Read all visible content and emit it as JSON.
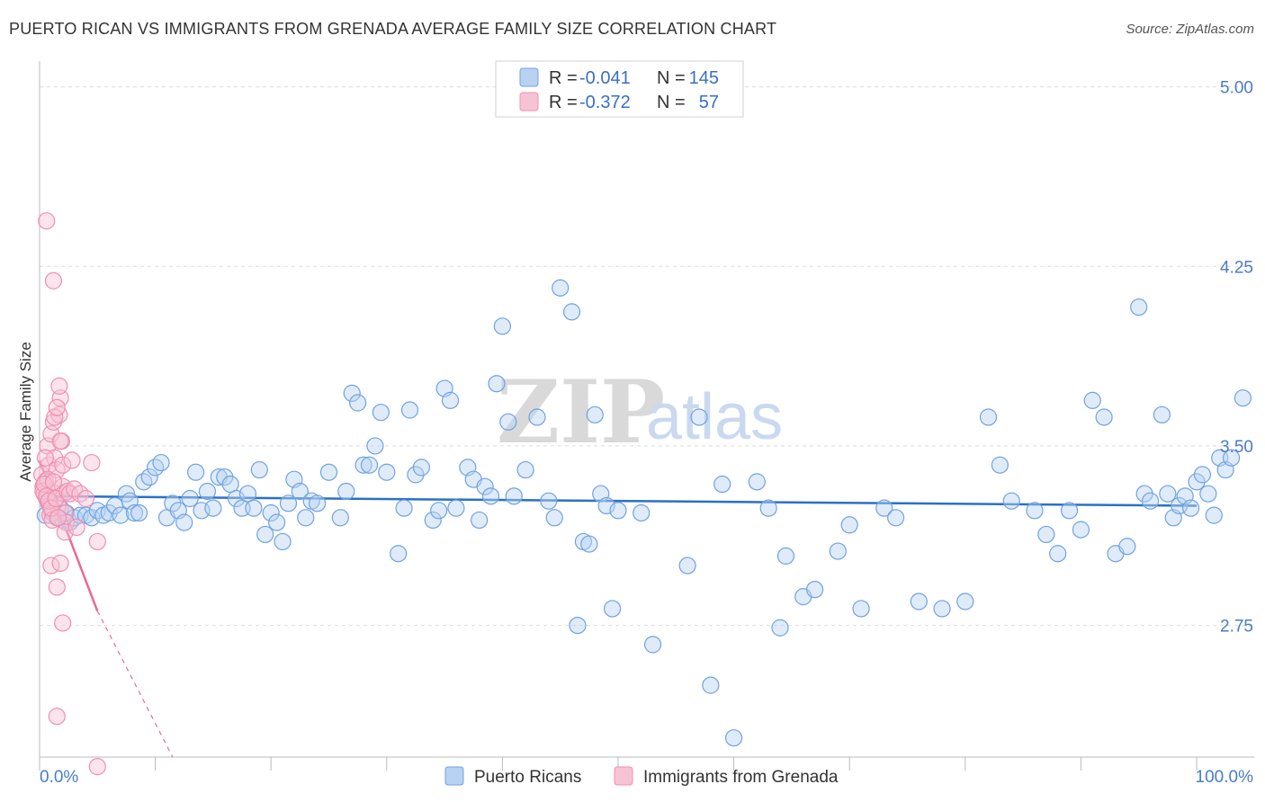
{
  "title": "PUERTO RICAN VS IMMIGRANTS FROM GRENADA AVERAGE FAMILY SIZE CORRELATION CHART",
  "source": "Source: ZipAtlas.com",
  "watermark": {
    "zip": "ZIP",
    "atlas": "atlas"
  },
  "colors": {
    "blue": "#6fa3e0",
    "blue_fill": "#b9d2f2",
    "pink": "#f08fb0",
    "pink_fill": "#f7c3d4",
    "blue_line": "#2a6fcb",
    "pink_line": "#e86a94"
  },
  "legend": {
    "rows": [
      {
        "r_label": "R = ",
        "r_value": "-0.041",
        "n_label": "N = ",
        "n_value": "145"
      },
      {
        "r_label": "R = ",
        "r_value": "-0.372",
        "n_label": "N = ",
        "n_value": "57"
      }
    ]
  },
  "bottom_legend": [
    "Puerto Ricans",
    "Immigrants from Grenada"
  ],
  "chart_data": {
    "type": "scatter",
    "title": "PUERTO RICAN VS IMMIGRANTS FROM GRENADA AVERAGE FAMILY SIZE CORRELATION CHART",
    "xlabel": "",
    "ylabel": "Average Family Size",
    "x_tick_labels": [
      "0.0%",
      "100.0%"
    ],
    "y_tick_labels": [
      "5.00",
      "4.25",
      "3.50",
      "2.75"
    ],
    "y_ticks": [
      5.0,
      4.25,
      3.5,
      2.75
    ],
    "xlim": [
      0,
      100
    ],
    "ylim": [
      2.2,
      5.07
    ],
    "grid": true,
    "series": [
      {
        "name": "Puerto Ricans",
        "trend": {
          "x": [
            0,
            100
          ],
          "y": [
            3.29,
            3.25
          ]
        },
        "points": [
          [
            0.5,
            3.21
          ],
          [
            0.8,
            3.26
          ],
          [
            1.2,
            3.22
          ],
          [
            1.5,
            3.2
          ],
          [
            1.8,
            3.24
          ],
          [
            2.0,
            3.19
          ],
          [
            2.3,
            3.22
          ],
          [
            2.6,
            3.18
          ],
          [
            3.0,
            3.2
          ],
          [
            3.5,
            3.21
          ],
          [
            4.0,
            3.21
          ],
          [
            4.5,
            3.2
          ],
          [
            5.0,
            3.23
          ],
          [
            5.5,
            3.21
          ],
          [
            6.0,
            3.22
          ],
          [
            6.5,
            3.25
          ],
          [
            7.0,
            3.21
          ],
          [
            7.5,
            3.3
          ],
          [
            7.8,
            3.27
          ],
          [
            8.2,
            3.22
          ],
          [
            8.6,
            3.22
          ],
          [
            9.0,
            3.35
          ],
          [
            9.5,
            3.37
          ],
          [
            10.0,
            3.41
          ],
          [
            10.5,
            3.43
          ],
          [
            11.0,
            3.2
          ],
          [
            11.5,
            3.26
          ],
          [
            12.0,
            3.23
          ],
          [
            12.5,
            3.18
          ],
          [
            13.0,
            3.28
          ],
          [
            13.5,
            3.39
          ],
          [
            14.0,
            3.23
          ],
          [
            14.5,
            3.31
          ],
          [
            15.0,
            3.24
          ],
          [
            15.5,
            3.37
          ],
          [
            16.0,
            3.37
          ],
          [
            16.5,
            3.34
          ],
          [
            17.0,
            3.28
          ],
          [
            17.5,
            3.24
          ],
          [
            18.0,
            3.3
          ],
          [
            18.5,
            3.24
          ],
          [
            19.0,
            3.4
          ],
          [
            19.5,
            3.13
          ],
          [
            20.0,
            3.22
          ],
          [
            20.5,
            3.18
          ],
          [
            21.0,
            3.1
          ],
          [
            21.5,
            3.26
          ],
          [
            22.0,
            3.36
          ],
          [
            22.5,
            3.31
          ],
          [
            23.0,
            3.2
          ],
          [
            23.5,
            3.27
          ],
          [
            24.0,
            3.26
          ],
          [
            25.0,
            3.39
          ],
          [
            26.0,
            3.2
          ],
          [
            26.5,
            3.31
          ],
          [
            27.0,
            3.72
          ],
          [
            27.5,
            3.68
          ],
          [
            28.0,
            3.42
          ],
          [
            28.5,
            3.42
          ],
          [
            29.0,
            3.5
          ],
          [
            29.5,
            3.64
          ],
          [
            30.0,
            3.39
          ],
          [
            31.0,
            3.05
          ],
          [
            31.5,
            3.24
          ],
          [
            32.0,
            3.65
          ],
          [
            32.5,
            3.38
          ],
          [
            33.0,
            3.41
          ],
          [
            34.0,
            3.19
          ],
          [
            34.5,
            3.23
          ],
          [
            35.0,
            3.74
          ],
          [
            35.5,
            3.69
          ],
          [
            36.0,
            3.24
          ],
          [
            37.0,
            3.41
          ],
          [
            37.5,
            3.36
          ],
          [
            38.0,
            3.19
          ],
          [
            38.5,
            3.33
          ],
          [
            39.0,
            3.29
          ],
          [
            39.5,
            3.76
          ],
          [
            40.0,
            4.0
          ],
          [
            40.5,
            3.6
          ],
          [
            41.0,
            3.29
          ],
          [
            42.0,
            3.4
          ],
          [
            43.0,
            3.62
          ],
          [
            44.0,
            3.27
          ],
          [
            44.5,
            3.2
          ],
          [
            45.0,
            4.16
          ],
          [
            46.0,
            4.06
          ],
          [
            46.5,
            2.75
          ],
          [
            47.0,
            3.1
          ],
          [
            47.5,
            3.09
          ],
          [
            48.0,
            3.63
          ],
          [
            48.5,
            3.3
          ],
          [
            49.0,
            3.25
          ],
          [
            49.5,
            2.82
          ],
          [
            50.0,
            3.23
          ],
          [
            52.0,
            3.22
          ],
          [
            53.0,
            2.67
          ],
          [
            56.0,
            3.0
          ],
          [
            57.0,
            3.62
          ],
          [
            58.0,
            2.5
          ],
          [
            59.0,
            3.34
          ],
          [
            60.0,
            2.28
          ],
          [
            62.0,
            3.35
          ],
          [
            63.0,
            3.24
          ],
          [
            64.0,
            2.74
          ],
          [
            64.5,
            3.04
          ],
          [
            66.0,
            2.87
          ],
          [
            67.0,
            2.9
          ],
          [
            69.0,
            3.06
          ],
          [
            70.0,
            3.17
          ],
          [
            71.0,
            2.82
          ],
          [
            73.0,
            3.24
          ],
          [
            74.0,
            3.2
          ],
          [
            76.0,
            2.85
          ],
          [
            78.0,
            2.82
          ],
          [
            80.0,
            2.85
          ],
          [
            82.0,
            3.62
          ],
          [
            83.0,
            3.42
          ],
          [
            84.0,
            3.27
          ],
          [
            86.0,
            3.23
          ],
          [
            87.0,
            3.13
          ],
          [
            88.0,
            3.05
          ],
          [
            89.0,
            3.23
          ],
          [
            90.0,
            3.15
          ],
          [
            91.0,
            3.69
          ],
          [
            92.0,
            3.62
          ],
          [
            93.0,
            3.05
          ],
          [
            94.0,
            3.08
          ],
          [
            95.0,
            4.08
          ],
          [
            95.5,
            3.3
          ],
          [
            96.0,
            3.27
          ],
          [
            97.0,
            3.63
          ],
          [
            97.5,
            3.3
          ],
          [
            98.0,
            3.2
          ],
          [
            98.5,
            3.25
          ],
          [
            99.0,
            3.29
          ],
          [
            99.5,
            3.24
          ],
          [
            100.0,
            3.35
          ],
          [
            100.5,
            3.38
          ],
          [
            101.0,
            3.3
          ],
          [
            101.5,
            3.21
          ],
          [
            102.0,
            3.45
          ],
          [
            102.5,
            3.4
          ],
          [
            103.0,
            3.45
          ],
          [
            104.0,
            3.7
          ]
        ]
      },
      {
        "name": "Immigrants from Grenada",
        "trend": {
          "x": [
            0,
            5
          ],
          "y": [
            3.44,
            2.81
          ]
        },
        "trend_dashed": {
          "x": [
            5,
            11.5
          ],
          "y": [
            2.81,
            2.0
          ]
        },
        "points": [
          [
            0.2,
            3.38
          ],
          [
            0.3,
            3.33
          ],
          [
            0.4,
            3.3
          ],
          [
            0.5,
            3.35
          ],
          [
            0.6,
            3.28
          ],
          [
            0.7,
            3.5
          ],
          [
            0.8,
            3.42
          ],
          [
            0.9,
            3.25
          ],
          [
            1.0,
            3.55
          ],
          [
            1.1,
            3.22
          ],
          [
            1.2,
            3.6
          ],
          [
            1.3,
            3.45
          ],
          [
            1.4,
            3.3
          ],
          [
            1.5,
            3.4
          ],
          [
            1.6,
            3.25
          ],
          [
            1.7,
            3.63
          ],
          [
            1.8,
            3.7
          ],
          [
            1.9,
            3.52
          ],
          [
            2.0,
            3.33
          ],
          [
            2.1,
            3.3
          ],
          [
            2.2,
            3.22
          ],
          [
            2.3,
            3.18
          ],
          [
            0.3,
            3.31
          ],
          [
            0.5,
            3.45
          ],
          [
            0.7,
            3.36
          ],
          [
            0.9,
            3.21
          ],
          [
            1.1,
            3.19
          ],
          [
            1.3,
            3.62
          ],
          [
            1.5,
            3.66
          ],
          [
            1.7,
            3.75
          ],
          [
            0.4,
            3.34
          ],
          [
            0.6,
            3.29
          ],
          [
            0.8,
            3.27
          ],
          [
            1.0,
            3.24
          ],
          [
            1.2,
            3.35
          ],
          [
            1.4,
            3.28
          ],
          [
            1.6,
            3.2
          ],
          [
            1.8,
            3.52
          ],
          [
            2.0,
            3.42
          ],
          [
            2.2,
            3.14
          ],
          [
            2.4,
            3.31
          ],
          [
            2.6,
            3.3
          ],
          [
            2.8,
            3.44
          ],
          [
            3.0,
            3.32
          ],
          [
            3.2,
            3.16
          ],
          [
            3.5,
            3.3
          ],
          [
            4.0,
            3.28
          ],
          [
            4.5,
            3.43
          ],
          [
            5.0,
            3.1
          ],
          [
            0.6,
            4.44
          ],
          [
            1.2,
            4.19
          ],
          [
            1.0,
            3.0
          ],
          [
            1.5,
            2.91
          ],
          [
            1.8,
            3.01
          ],
          [
            2.0,
            2.76
          ],
          [
            1.5,
            2.37
          ],
          [
            5.0,
            2.16
          ]
        ]
      }
    ]
  }
}
